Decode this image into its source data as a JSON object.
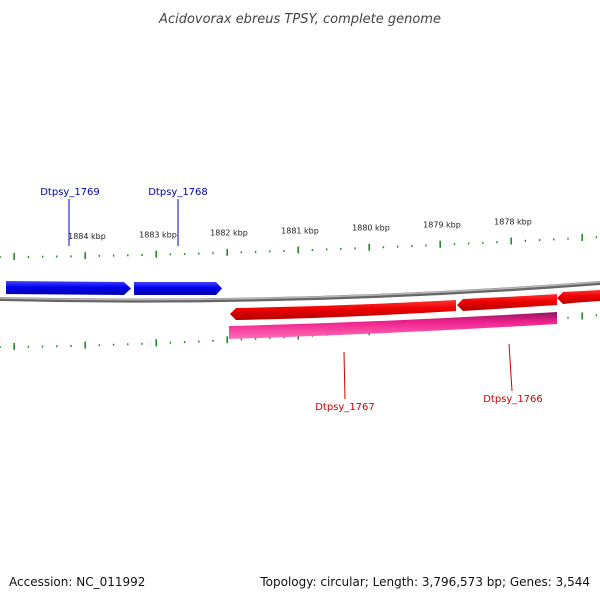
{
  "title": "Acidovorax ebreus TPSY, complete genome",
  "footer": {
    "accession": "Accession: NC_011992",
    "summary": "Topology: circular; Length: 3,796,573 bp; Genes: 3,544"
  },
  "colors": {
    "forward_gene": "#0000ee",
    "reverse_gene": "#ee0000",
    "rna_gene": "#ee1e8c",
    "backbone": "#888888",
    "ticks": "#228B22",
    "forward_label": "#0000aa",
    "reverse_label": "#cc0000"
  },
  "ruler": {
    "labels": [
      "1884 kbp",
      "1883 kbp",
      "1882 kbp",
      "1881 kbp",
      "1880 kbp",
      "1879 kbp",
      "1878 kbp"
    ]
  },
  "genes": [
    {
      "name": "Dtpsy_1769",
      "strand": "forward"
    },
    {
      "name": "Dtpsy_1768",
      "strand": "forward"
    },
    {
      "name": "Dtpsy_1767",
      "strand": "reverse"
    },
    {
      "name": "Dtpsy_1766",
      "strand": "reverse"
    }
  ]
}
